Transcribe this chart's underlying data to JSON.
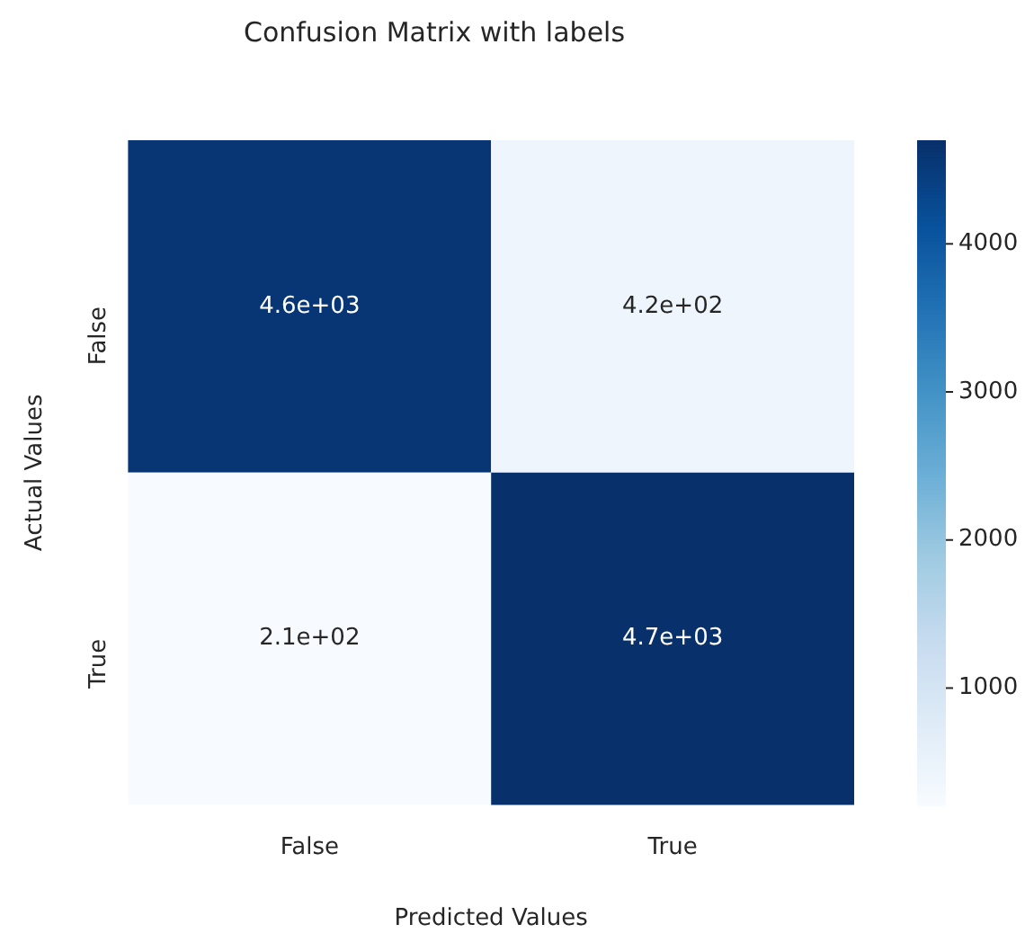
{
  "chart_data": {
    "type": "heatmap",
    "title": "Confusion Matrix with labels",
    "xlabel": "Predicted Values",
    "ylabel": "Actual Values",
    "categories": [
      "False",
      "True"
    ],
    "y_categories": [
      "False",
      "True"
    ],
    "cells": [
      [
        4600,
        420
      ],
      [
        210,
        4700
      ]
    ],
    "cell_labels": [
      [
        "4.6e+03",
        "4.2e+02"
      ],
      [
        "2.1e+02",
        "4.7e+03"
      ]
    ],
    "clim": [
      210,
      4700
    ],
    "cticks": [
      1000,
      2000,
      3000,
      4000
    ]
  }
}
